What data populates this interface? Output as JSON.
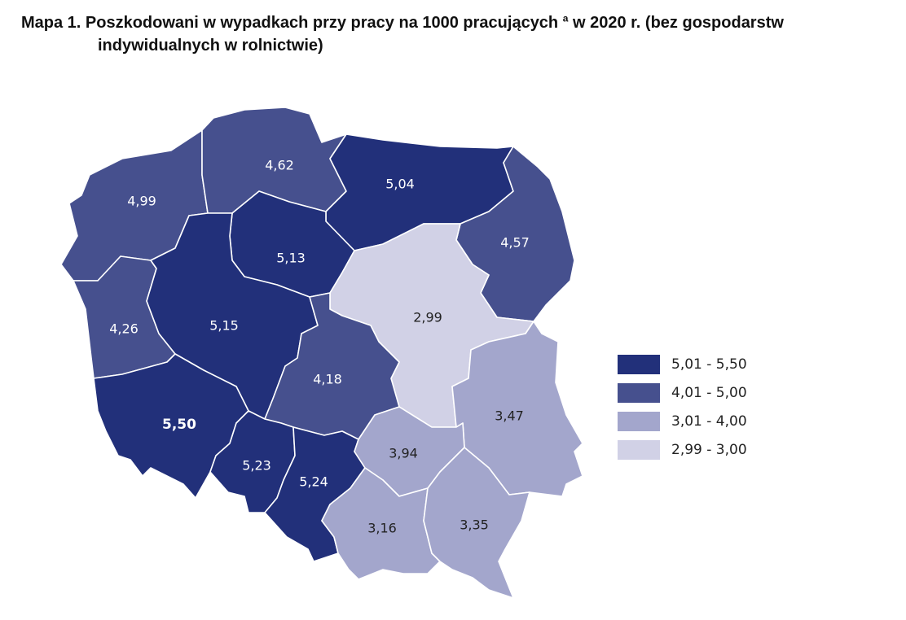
{
  "title": {
    "line1_prefix": "Mapa 1. Poszkodowani w wypadkach przy pracy na 1000 pracujących",
    "superscript": "a",
    "line1_suffix": "w 2020 r. (bez gospodarstw",
    "line2": "indywidualnych w rolnictwie)"
  },
  "colors": {
    "darkest": "#22307a",
    "dark": "#46508e",
    "medium": "#a3a6cc",
    "light": "#d1d1e6",
    "label_on_dark": "#ffffff",
    "label_on_light": "#222222"
  },
  "legend": [
    {
      "label": "5,01 - 5,50",
      "class": "darkest"
    },
    {
      "label": "4,01 - 5,00",
      "class": "dark"
    },
    {
      "label": "3,01 - 4,00",
      "class": "medium"
    },
    {
      "label": "2,99 - 3,00",
      "class": "light"
    }
  ],
  "regions": [
    {
      "value": "4,99",
      "class": "dark"
    },
    {
      "value": "4,62",
      "class": "dark"
    },
    {
      "value": "5,04",
      "class": "darkest"
    },
    {
      "value": "4,57",
      "class": "dark"
    },
    {
      "value": "5,13",
      "class": "darkest"
    },
    {
      "value": "4,26",
      "class": "dark"
    },
    {
      "value": "5,15",
      "class": "darkest"
    },
    {
      "value": "2,99",
      "class": "light"
    },
    {
      "value": "4,18",
      "class": "dark"
    },
    {
      "value": "3,47",
      "class": "medium"
    },
    {
      "value": "5,50",
      "class": "darkest"
    },
    {
      "value": "5,23",
      "class": "darkest"
    },
    {
      "value": "5,24",
      "class": "darkest"
    },
    {
      "value": "3,94",
      "class": "medium"
    },
    {
      "value": "3,16",
      "class": "medium"
    },
    {
      "value": "3,35",
      "class": "medium"
    }
  ]
}
